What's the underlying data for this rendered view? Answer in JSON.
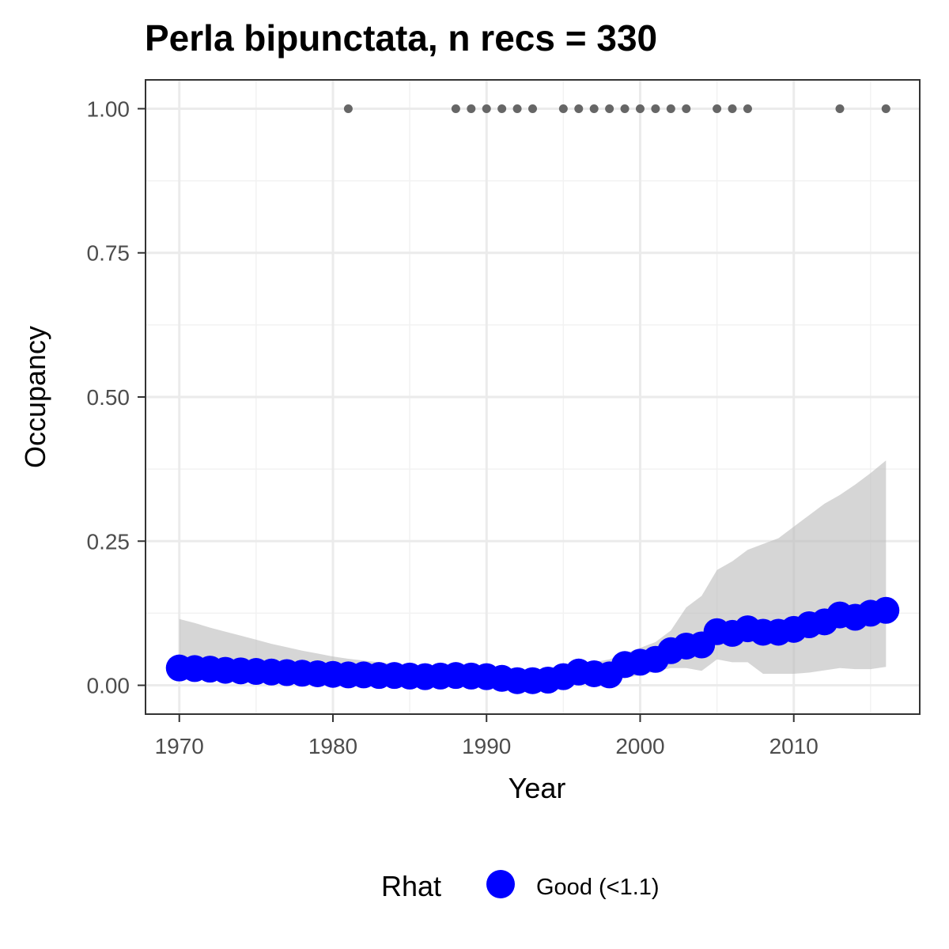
{
  "chart_data": {
    "type": "line",
    "title": "Perla bipunctata, n recs = 330",
    "xlabel": "Year",
    "ylabel": "Occupancy",
    "xlim": [
      1967.8,
      2018.2
    ],
    "ylim": [
      -0.05,
      1.05
    ],
    "x_ticks": [
      1970,
      1980,
      1990,
      2000,
      2010
    ],
    "y_ticks": [
      0,
      0.25,
      0.5,
      0.75,
      1
    ],
    "y_tick_labels": [
      "0.00",
      "0.25",
      "0.50",
      "0.75",
      "1.00"
    ],
    "grid": true,
    "legend": {
      "title": "Rhat",
      "position": "bottom",
      "entries": [
        {
          "label": "Good (<1.1)",
          "color": "#0000ff"
        }
      ]
    },
    "colors": {
      "point": "#0000ff",
      "ribbon": "#bdbdbd",
      "records": "#666666"
    },
    "series": [
      {
        "name": "Good (<1.1)",
        "x": [
          1970,
          1971,
          1972,
          1973,
          1974,
          1975,
          1976,
          1977,
          1978,
          1979,
          1980,
          1981,
          1982,
          1983,
          1984,
          1985,
          1986,
          1987,
          1988,
          1989,
          1990,
          1991,
          1992,
          1993,
          1994,
          1995,
          1996,
          1997,
          1998,
          1999,
          2000,
          2001,
          2002,
          2003,
          2004,
          2005,
          2006,
          2007,
          2008,
          2009,
          2010,
          2011,
          2012,
          2013,
          2014,
          2015,
          2016
        ],
        "y": [
          0.03,
          0.029,
          0.028,
          0.026,
          0.025,
          0.024,
          0.023,
          0.022,
          0.021,
          0.02,
          0.019,
          0.018,
          0.018,
          0.017,
          0.017,
          0.016,
          0.015,
          0.016,
          0.017,
          0.016,
          0.015,
          0.012,
          0.008,
          0.008,
          0.009,
          0.015,
          0.023,
          0.02,
          0.018,
          0.036,
          0.04,
          0.045,
          0.06,
          0.068,
          0.07,
          0.093,
          0.09,
          0.098,
          0.092,
          0.092,
          0.097,
          0.105,
          0.11,
          0.122,
          0.118,
          0.125,
          0.13
        ],
        "lower": [
          0.02,
          0.019,
          0.018,
          0.017,
          0.016,
          0.015,
          0.014,
          0.013,
          0.012,
          0.011,
          0.011,
          0.01,
          0.009,
          0.009,
          0.009,
          0.008,
          0.008,
          0.008,
          0.008,
          0.007,
          0.006,
          0.005,
          0.003,
          0.002,
          0.003,
          0.005,
          0.008,
          0.008,
          0.008,
          0.012,
          0.018,
          0.024,
          0.03,
          0.03,
          0.025,
          0.045,
          0.04,
          0.04,
          0.02,
          0.02,
          0.02,
          0.022,
          0.026,
          0.03,
          0.028,
          0.028,
          0.032
        ],
        "upper": [
          0.115,
          0.108,
          0.1,
          0.093,
          0.086,
          0.079,
          0.072,
          0.066,
          0.06,
          0.055,
          0.05,
          0.046,
          0.043,
          0.04,
          0.037,
          0.035,
          0.033,
          0.032,
          0.031,
          0.03,
          0.029,
          0.028,
          0.027,
          0.027,
          0.029,
          0.032,
          0.036,
          0.04,
          0.045,
          0.055,
          0.065,
          0.075,
          0.095,
          0.135,
          0.155,
          0.2,
          0.215,
          0.235,
          0.245,
          0.255,
          0.275,
          0.295,
          0.315,
          0.33,
          0.348,
          0.368,
          0.39
        ]
      }
    ],
    "records": {
      "x": [
        1981,
        1988,
        1989,
        1990,
        1991,
        1992,
        1993,
        1995,
        1996,
        1997,
        1998,
        1999,
        2000,
        2001,
        2002,
        2003,
        2005,
        2006,
        2007,
        2013,
        2016
      ],
      "y": 1
    }
  }
}
